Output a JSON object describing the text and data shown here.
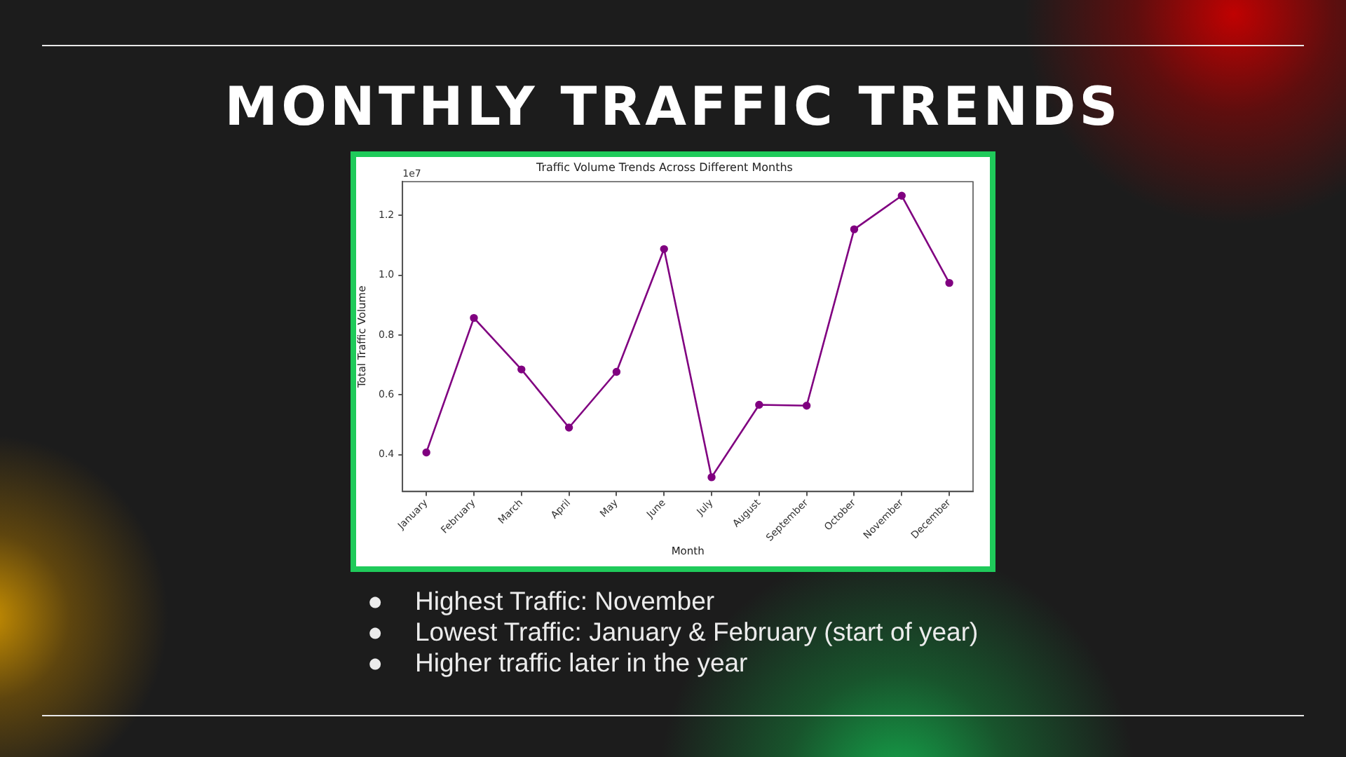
{
  "chart_data": {
    "type": "line",
    "title": "MONTHLY TRAFFIC TRENDS",
    "subtitle": "Traffic Volume Trends Across Different Months",
    "xlabel": "Month",
    "ylabel": "Total Traffic Volume",
    "categories": [
      "January",
      "February",
      "March",
      "April",
      "May",
      "June",
      "July",
      "August",
      "September",
      "October",
      "November",
      "December"
    ],
    "values": [
      0.408,
      0.857,
      0.685,
      0.491,
      0.677,
      1.087,
      0.325,
      0.567,
      0.564,
      1.153,
      1.265,
      0.974
    ],
    "color": "#800080",
    "marker": "circle",
    "line_style": "solid",
    "ylim": [
      0.277,
      1.312
    ],
    "yticks": [
      0.4,
      0.6,
      0.8,
      {
        "value": 1.0,
        "label": "1.0"
      },
      1.2
    ],
    "annotations": [
      "1e7",
      "●\tHighest Traffic: November",
      "●\tLowest Traffic: January & February (start of year)",
      "●\tHigher traffic later in the year"
    ]
  }
}
